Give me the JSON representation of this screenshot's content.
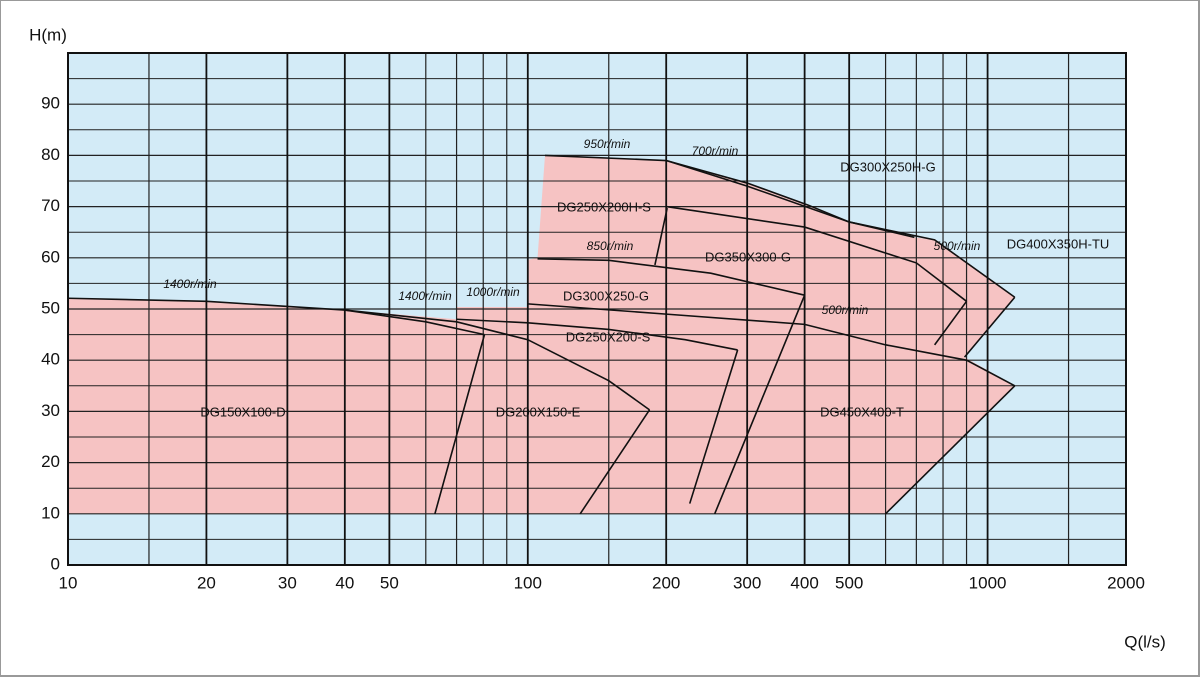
{
  "chart_data": {
    "type": "curves",
    "y_label": "H(m)",
    "x_label": "Q(l/s)",
    "log_x": true,
    "xlim": [
      10,
      2000
    ],
    "ylim": [
      0,
      100
    ],
    "xticks": [
      10,
      20,
      30,
      40,
      50,
      100,
      200,
      300,
      400,
      500,
      1000,
      2000
    ],
    "xgrid": [
      15,
      60,
      70,
      80,
      90,
      150,
      600,
      700,
      800,
      900,
      1500
    ],
    "yticks": [
      0,
      10,
      20,
      30,
      40,
      50,
      60,
      70,
      80,
      90
    ],
    "ygrid": [
      5,
      15,
      25,
      35,
      45,
      55,
      65,
      75,
      85,
      95,
      100
    ],
    "plot_color": "#d3ebf7",
    "region_color": "#f6c3c3",
    "line_color": "#111111",
    "region": {
      "q": [
        10,
        600,
        1146,
        891,
        1146,
        767,
        693,
        500,
        407,
        300,
        200,
        109,
        105,
        100,
        100,
        70,
        70,
        40,
        20,
        10
      ],
      "h": [
        10,
        10,
        35,
        40.6,
        52.3,
        63.5,
        64,
        67,
        70.3,
        74.6,
        79,
        80,
        60,
        59.6,
        50.4,
        50.4,
        48,
        49.8,
        51.5,
        52.1
      ]
    },
    "curves": [
      {
        "q": [
          10,
          20,
          40,
          60,
          80.5
        ],
        "h": [
          52.1,
          51.5,
          49.8,
          47.5,
          45
        ]
      },
      {
        "q": [
          80.5,
          62.8
        ],
        "h": [
          45,
          10
        ]
      },
      {
        "q": [
          40,
          70,
          100,
          150,
          184
        ],
        "h": [
          49.8,
          47.5,
          44,
          36,
          30.3
        ]
      },
      {
        "q": [
          184,
          130
        ],
        "h": [
          30.3,
          10
        ]
      },
      {
        "q": [
          70,
          100,
          150,
          220,
          286
        ],
        "h": [
          48,
          47.3,
          46,
          44,
          42
        ]
      },
      {
        "q": [
          286,
          225
        ],
        "h": [
          42,
          12
        ]
      },
      {
        "q": [
          105,
          150,
          250,
          400
        ],
        "h": [
          59.8,
          59.5,
          57,
          52.7
        ]
      },
      {
        "q": [
          400,
          255
        ],
        "h": [
          52.7,
          10
        ]
      },
      {
        "q": [
          100,
          200,
          400,
          600,
          900,
          1146
        ],
        "h": [
          51,
          49,
          47,
          43,
          40,
          35
        ]
      },
      {
        "q": [
          1146,
          600
        ],
        "h": [
          35,
          10
        ]
      },
      {
        "q": [
          109,
          200,
          300,
          407,
          500,
          693
        ],
        "h": [
          80,
          79,
          74.6,
          70.3,
          67,
          64
        ]
      },
      {
        "q": [
          201,
          189
        ],
        "h": [
          69.7,
          58.6
        ]
      },
      {
        "q": [
          200,
          300,
          500,
          767,
          1146
        ],
        "h": [
          79,
          74,
          67,
          63.5,
          52.3
        ]
      },
      {
        "q": [
          200,
          400,
          700,
          900
        ],
        "h": [
          70,
          66,
          59,
          51.5
        ]
      },
      {
        "q": [
          900,
          767
        ],
        "h": [
          51.5,
          43
        ]
      },
      {
        "q": [
          1146,
          891
        ],
        "h": [
          52.3,
          40.6
        ]
      }
    ],
    "speed_labels": [
      "950r/min",
      "700r/min",
      "850r/min",
      "1400r/min",
      "1400r/min",
      "1000r/min",
      "500r/min",
      "500r/min"
    ],
    "model_labels": [
      "DG300X250H-G",
      "DG250X200H-S",
      "DG350X300-G",
      "DG400X350H-TU",
      "DG300X250-G",
      "DG250X200-S",
      "DG150X100-D",
      "DG200X150-E",
      "DG450X400-T"
    ]
  }
}
